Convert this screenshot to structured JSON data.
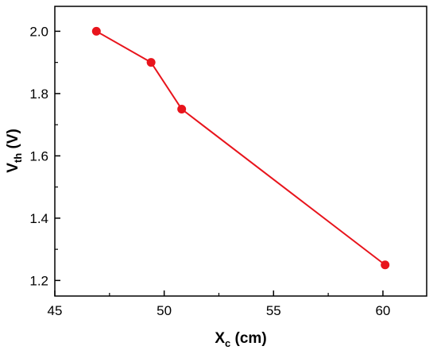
{
  "chart_data": {
    "type": "line",
    "title": "",
    "xlabel": {
      "main": "X",
      "sub": "c",
      "unit": " (cm)"
    },
    "ylabel": {
      "main": "V",
      "sub": "th",
      "unit": " (V)"
    },
    "xlim": [
      45,
      62
    ],
    "ylim": [
      1.15,
      2.08
    ],
    "x_ticks": [
      45,
      50,
      55,
      60
    ],
    "x_tick_labels": [
      "45",
      "50",
      "55",
      "60"
    ],
    "y_ticks": [
      1.2,
      1.4,
      1.6,
      1.8,
      2.0
    ],
    "y_tick_labels": [
      "1.2",
      "1.4",
      "1.6",
      "1.8",
      "2.0"
    ],
    "grid": false,
    "legend": "none",
    "series": [
      {
        "color": "#e8141c",
        "marker": "circle",
        "x": [
          46.9,
          49.4,
          50.8,
          60.1
        ],
        "y": [
          2.0,
          1.9,
          1.75,
          1.25
        ]
      }
    ]
  }
}
